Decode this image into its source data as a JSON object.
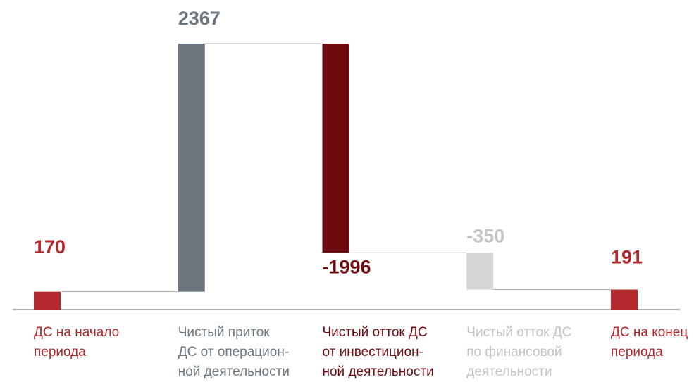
{
  "chart_data": {
    "type": "waterfall",
    "categories": [
      [
        "ДС на начало",
        "периода"
      ],
      [
        "Чистый приток",
        "ДС от операцион-",
        "ной деятельности"
      ],
      [
        "Чистый отток ДС",
        "от инвестицион-",
        "ной деятельности"
      ],
      [
        "Чистый отток ДС",
        "по финансовой",
        "деятельности"
      ],
      [
        "ДС на конец",
        "периода"
      ]
    ],
    "values": [
      170,
      2367,
      -1996,
      -350,
      191
    ],
    "totals": [
      true,
      false,
      false,
      false,
      true
    ],
    "colors": [
      "#b3282c",
      "#6b767e",
      "#6d0b11",
      "#d5d5d5",
      "#b3282c"
    ],
    "label_colors": [
      "#b3282c",
      "#6b767e",
      "#6d0b11",
      "#c4c4c4",
      "#b3282c"
    ]
  }
}
